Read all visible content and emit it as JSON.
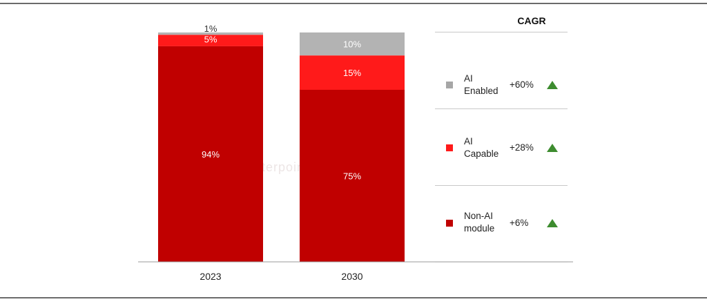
{
  "chart_data": {
    "type": "bar",
    "stacked": true,
    "categories": [
      "2023",
      "2030"
    ],
    "ylim": [
      0,
      100
    ],
    "grid": false,
    "series": [
      {
        "name": "Non-AI module",
        "color": "#c00000",
        "values": [
          94,
          75
        ],
        "labels": [
          "94%",
          "75%"
        ]
      },
      {
        "name": "AI Capable",
        "color": "#ff1a1a",
        "values": [
          5,
          15
        ],
        "labels": [
          "5%",
          "15%"
        ]
      },
      {
        "name": "AI Enabled",
        "color": "#b3b3b3",
        "values": [
          1,
          10
        ],
        "labels": [
          "1%",
          "10%"
        ]
      }
    ]
  },
  "legend": {
    "title": "CAGR",
    "items": [
      {
        "name": "AI\nEnabled",
        "cagr": "+60%",
        "color": "#a6a6a6",
        "trend_icon": "triangle-up-icon"
      },
      {
        "name": "AI\nCapable",
        "cagr": "+28%",
        "color": "#ff1a1a",
        "trend_icon": "triangle-up-icon"
      },
      {
        "name": "Non-AI\nmodule",
        "cagr": "+6%",
        "color": "#c00000",
        "trend_icon": "triangle-up-icon"
      }
    ]
  },
  "watermark": "Counterpoint"
}
